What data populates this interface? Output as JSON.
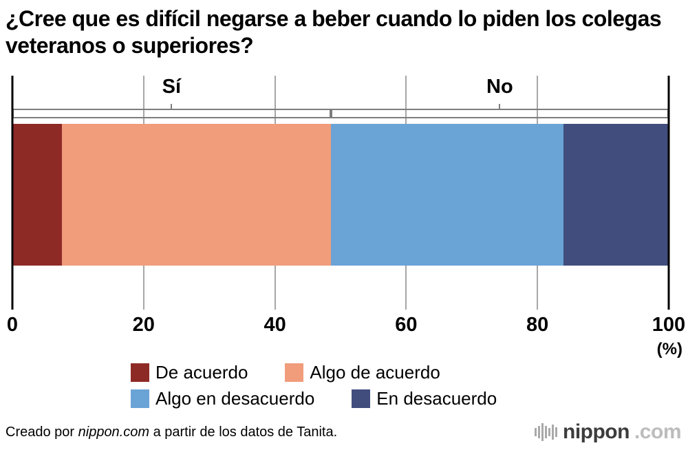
{
  "title": "¿Cree que es difícil negarse a beber cuando lo piden los colegas veteranos o superiores?",
  "chart_data": {
    "type": "bar",
    "subtype": "horizontal-stacked-single-bar",
    "title": "¿Cree que es difícil negarse a beber cuando lo piden los colegas veteranos o superiores?",
    "xlim": [
      0,
      100
    ],
    "x_ticks": [
      "0",
      "20",
      "40",
      "60",
      "80",
      "100"
    ],
    "x_unit": "(%)",
    "grid": true,
    "segments": [
      {
        "label": "De acuerdo",
        "value": 7.5,
        "color": "#8e2a26"
      },
      {
        "label": "Algo de acuerdo",
        "value": 41.0,
        "color": "#f19c7b"
      },
      {
        "label": "Algo en desacuerdo",
        "value": 35.5,
        "color": "#6aa3d6"
      },
      {
        "label": "En desacuerdo",
        "value": 16.0,
        "color": "#404d7d"
      }
    ],
    "groups": [
      {
        "label": "Sí",
        "span": 48.5
      },
      {
        "label": "No",
        "span": 51.5
      }
    ],
    "legend_rows": [
      [
        0,
        1
      ],
      [
        2,
        3
      ]
    ],
    "legend_position": "bottom"
  },
  "footer": {
    "credit": {
      "prefix": "Creado por ",
      "brand": "nippon.com",
      "suffix": " a partir de los datos de Tanita."
    },
    "logo": {
      "name": "nippon",
      "tld": ".com"
    }
  },
  "colors": {
    "gridline": "#a6a6a6",
    "axis_edge": "#000000",
    "bracket": "#7d7d7d",
    "logo_gray": "#a9a9a9"
  }
}
